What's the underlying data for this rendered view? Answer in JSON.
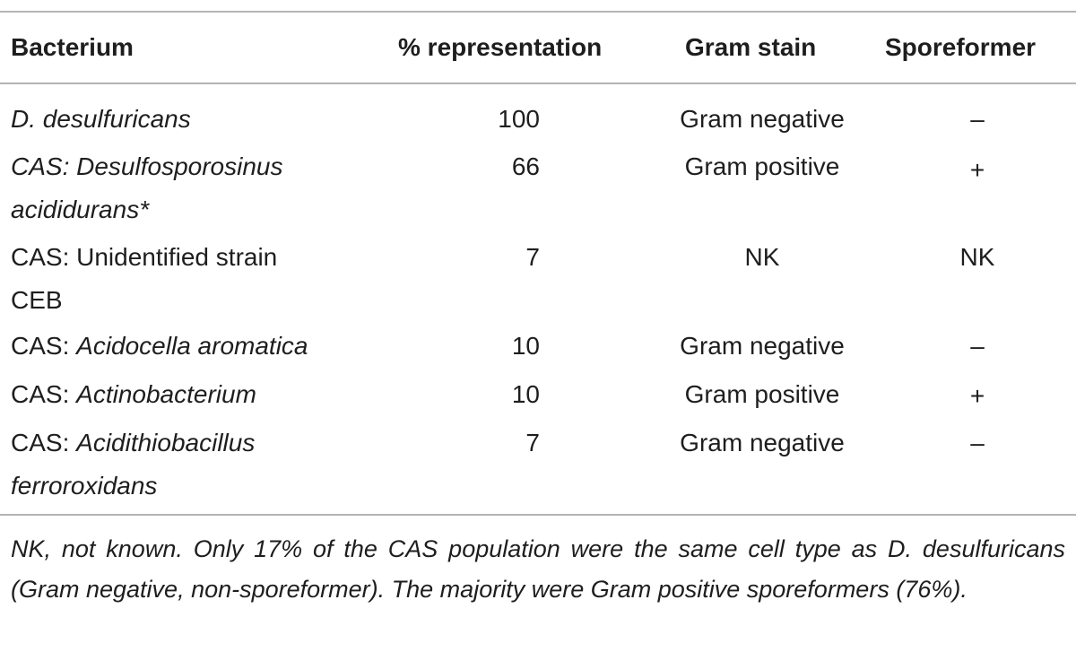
{
  "headers": {
    "bacterium": "Bacterium",
    "representation": "% representation",
    "gram_stain": "Gram stain",
    "sporeformer": "Sporeformer"
  },
  "rows": [
    {
      "bacterium_prefix": "",
      "bacterium_line1": "D. desulfuricans",
      "bacterium_line2": "",
      "representation": "100",
      "gram_stain": "Gram negative",
      "sporeformer": "–"
    },
    {
      "bacterium_prefix": "",
      "bacterium_line1": "CAS: Desulfosporosinus",
      "bacterium_line2": "acididurans*",
      "representation": "66",
      "gram_stain": "Gram positive",
      "sporeformer": "+"
    },
    {
      "bacterium_prefix": "",
      "bacterium_line1": "CAS: Unidentified strain",
      "bacterium_line2": "CEB",
      "representation": "7",
      "gram_stain": "NK",
      "sporeformer": "NK"
    },
    {
      "bacterium_prefix": "CAS: ",
      "bacterium_line1": "Acidocella aromatica",
      "bacterium_line2": "",
      "representation": "10",
      "gram_stain": "Gram negative",
      "sporeformer": "–"
    },
    {
      "bacterium_prefix": "CAS: ",
      "bacterium_line1": "Actinobacterium",
      "bacterium_line2": "",
      "representation": "10",
      "gram_stain": "Gram positive",
      "sporeformer": "+"
    },
    {
      "bacterium_prefix": "CAS: ",
      "bacterium_line1": "Acidithiobacillus",
      "bacterium_line2": "ferroroxidans",
      "representation": "7",
      "gram_stain": "Gram negative",
      "sporeformer": "–"
    }
  ],
  "footnote": "NK, not known. Only 17% of the CAS population were the same cell type as D. desulfuricans (Gram negative, non-sporeformer). The majority were Gram positive sporeformers (76%)."
}
